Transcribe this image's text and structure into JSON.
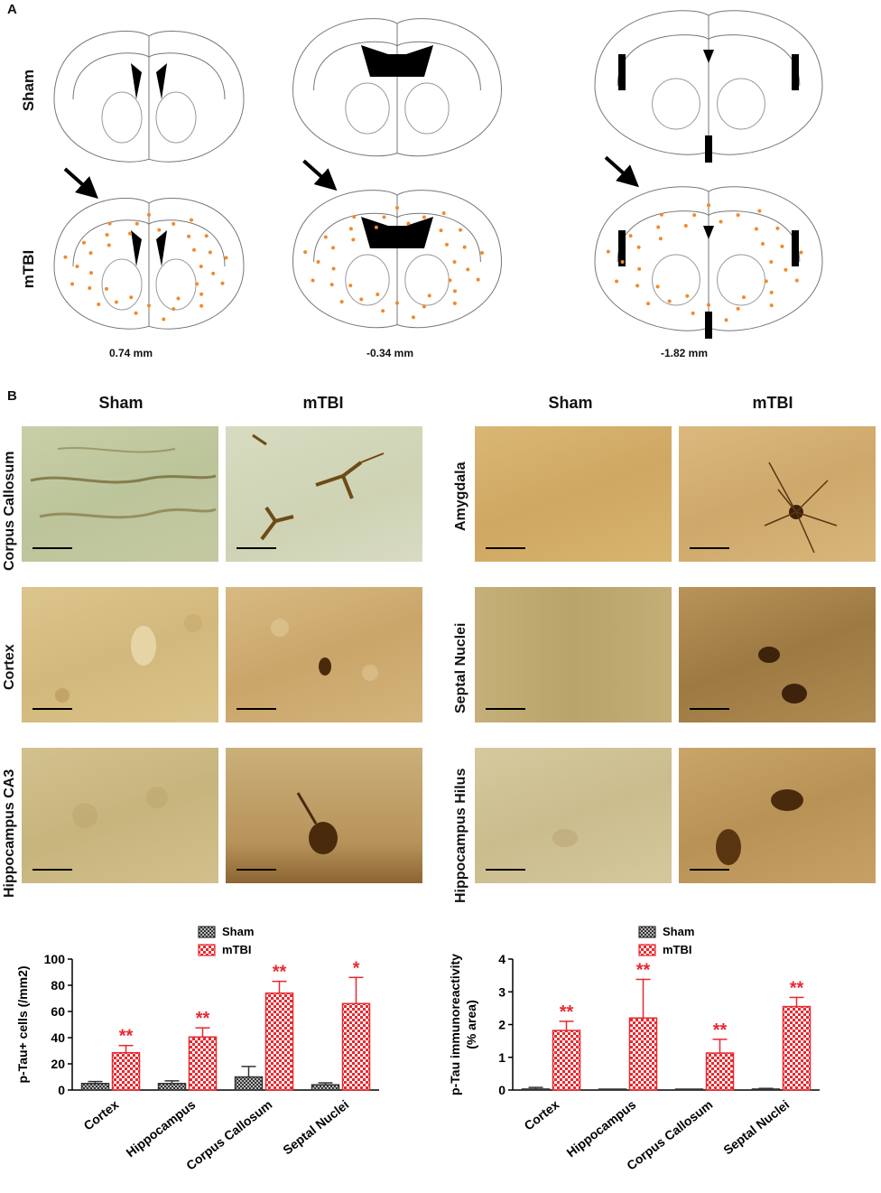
{
  "panelA": {
    "letter": "A",
    "rows": [
      "Sham",
      "mTBI"
    ],
    "sections": [
      "0.74 mm",
      "-0.34 mm",
      "-1.82 mm"
    ]
  },
  "panelB": {
    "letter": "B",
    "leftGroup": {
      "columns": [
        "Sham",
        "mTBI"
      ],
      "rows": [
        "Corpus Callosum",
        "Cortex",
        "Hippocampus CA3"
      ]
    },
    "rightGroup": {
      "columns": [
        "Sham",
        "mTBI"
      ],
      "rows": [
        "Amygdala",
        "Septal Nuclei",
        "Hippocampus Hilus"
      ]
    }
  },
  "colors": {
    "sham": "#333333",
    "mtbi": "#e8282e",
    "dots": "#ef8a2c"
  },
  "chart_data": [
    {
      "type": "bar",
      "ylabel": "p-Tau+ cells (/mm2)",
      "ylim": [
        0,
        100
      ],
      "yticks": [
        0,
        20,
        40,
        60,
        80,
        100
      ],
      "categories": [
        "Cortex",
        "Hippocampus",
        "Corpus Callosum",
        "Septal Nuclei"
      ],
      "legend": "top-center",
      "series": [
        {
          "name": "Sham",
          "values": [
            5,
            5,
            10,
            4
          ],
          "errors": [
            1.5,
            2,
            8,
            1.5
          ]
        },
        {
          "name": "mTBI",
          "values": [
            28.5,
            40.5,
            74,
            66
          ],
          "errors": [
            5.5,
            7,
            9,
            20
          ]
        }
      ],
      "significance": [
        "**",
        "**",
        "**",
        "*"
      ]
    },
    {
      "type": "bar",
      "ylabel": "p-Tau immunoreactivity\n(% area)",
      "ylim": [
        0,
        4
      ],
      "yticks": [
        0,
        1,
        2,
        3,
        4
      ],
      "categories": [
        "Cortex",
        "Hippocampus",
        "Corpus Callosum",
        "Septal Nuclei"
      ],
      "legend": "top-center",
      "series": [
        {
          "name": "Sham",
          "values": [
            0.03,
            0.01,
            0.01,
            0.03
          ],
          "errors": [
            0.05,
            0.01,
            0.01,
            0.02
          ]
        },
        {
          "name": "mTBI",
          "values": [
            1.82,
            2.2,
            1.13,
            2.55
          ],
          "errors": [
            0.28,
            1.18,
            0.42,
            0.28
          ]
        }
      ],
      "significance": [
        "**",
        "**",
        "**",
        "**"
      ]
    }
  ]
}
